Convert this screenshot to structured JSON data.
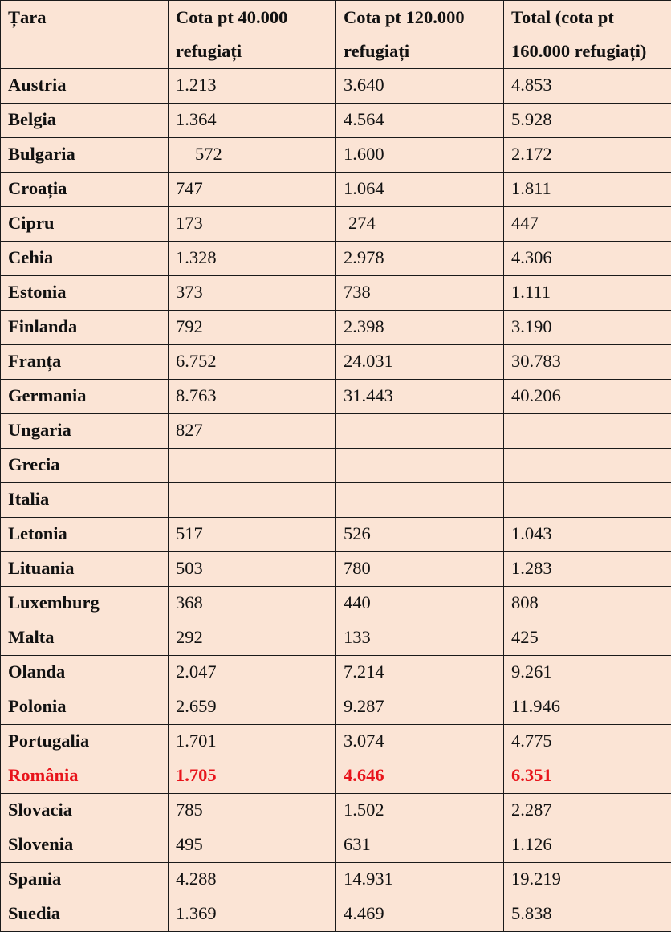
{
  "table": {
    "headers": [
      "Țara",
      "Cota pt 40.000 refugiați",
      "Cota pt 120.000 refugiați",
      "Total (cota pt 160.000 refugiați)"
    ],
    "rows": [
      {
        "country": "Austria",
        "q40": "1.213",
        "q120": "3.640",
        "total": "4.853"
      },
      {
        "country": "Belgia",
        "q40": "1.364",
        "q120": "4.564",
        "total": "5.928"
      },
      {
        "country": "Bulgaria",
        "q40": "572",
        "q120": "1.600",
        "total": "2.172"
      },
      {
        "country": "Croația",
        "q40": "747",
        "q120": "1.064",
        "total": "1.811"
      },
      {
        "country": "Cipru",
        "q40": "173",
        "q120": "274",
        "total": "447"
      },
      {
        "country": "Cehia",
        "q40": "1.328",
        "q120": "2.978",
        "total": "4.306"
      },
      {
        "country": "Estonia",
        "q40": "373",
        "q120": "738",
        "total": "1.111"
      },
      {
        "country": "Finlanda",
        "q40": "792",
        "q120": "2.398",
        "total": "3.190"
      },
      {
        "country": "Franța",
        "q40": "6.752",
        "q120": "24.031",
        "total": "30.783"
      },
      {
        "country": "Germania",
        "q40": "8.763",
        "q120": "31.443",
        "total": "40.206"
      },
      {
        "country": "Ungaria",
        "q40": "827",
        "q120": "",
        "total": ""
      },
      {
        "country": "Grecia",
        "q40": "",
        "q120": "",
        "total": ""
      },
      {
        "country": "Italia",
        "q40": "",
        "q120": "",
        "total": ""
      },
      {
        "country": "Letonia",
        "q40": "517",
        "q120": "526",
        "total": "1.043"
      },
      {
        "country": "Lituania",
        "q40": "503",
        "q120": "780",
        "total": "1.283"
      },
      {
        "country": "Luxemburg",
        "q40": "368",
        "q120": "440",
        "total": "808"
      },
      {
        "country": "Malta",
        "q40": "292",
        "q120": "133",
        "total": "425"
      },
      {
        "country": "Olanda",
        "q40": "2.047",
        "q120": "7.214",
        "total": "9.261"
      },
      {
        "country": "Polonia",
        "q40": "2.659",
        "q120": "9.287",
        "total": "11.946"
      },
      {
        "country": "Portugalia",
        "q40": "1.701",
        "q120": "3.074",
        "total": "4.775"
      },
      {
        "country": "România",
        "q40": "1.705",
        "q120": "4.646",
        "total": "6.351"
      },
      {
        "country": "Slovacia",
        "q40": "785",
        "q120": "1.502",
        "total": "2.287"
      },
      {
        "country": "Slovenia",
        "q40": "495",
        "q120": "631",
        "total": "1.126"
      },
      {
        "country": "Spania",
        "q40": "4.288",
        "q120": "14.931",
        "total": "19.219"
      },
      {
        "country": "Suedia",
        "q40": "1.369",
        "q120": "4.469",
        "total": "5.838"
      }
    ]
  },
  "colors": {
    "background": "#fbe4d5",
    "highlight": "#e8141b",
    "text": "#111111"
  }
}
